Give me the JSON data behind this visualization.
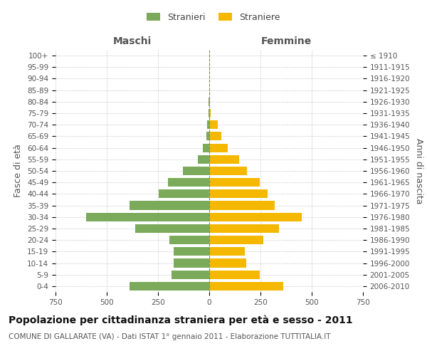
{
  "age_groups": [
    "100+",
    "95-99",
    "90-94",
    "85-89",
    "80-84",
    "75-79",
    "70-74",
    "65-69",
    "60-64",
    "55-59",
    "50-54",
    "45-49",
    "40-44",
    "35-39",
    "30-34",
    "25-29",
    "20-24",
    "15-19",
    "10-14",
    "5-9",
    "0-4"
  ],
  "birth_years": [
    "≤ 1910",
    "1911-1915",
    "1916-1920",
    "1921-1925",
    "1926-1930",
    "1931-1935",
    "1936-1940",
    "1941-1945",
    "1946-1950",
    "1951-1955",
    "1956-1960",
    "1961-1965",
    "1966-1970",
    "1971-1975",
    "1976-1980",
    "1981-1985",
    "1986-1990",
    "1991-1995",
    "1996-2000",
    "2001-2005",
    "2006-2010"
  ],
  "maschi": [
    0,
    0,
    0,
    0,
    3,
    5,
    10,
    15,
    30,
    55,
    130,
    200,
    245,
    390,
    600,
    360,
    195,
    175,
    175,
    185,
    390
  ],
  "femmine": [
    0,
    0,
    0,
    0,
    5,
    8,
    40,
    60,
    90,
    145,
    185,
    245,
    285,
    320,
    450,
    340,
    265,
    175,
    180,
    245,
    360
  ],
  "maschi_color": "#7aaa5a",
  "femmine_color": "#f5b800",
  "dashed_line_color": "#888855",
  "grid_color": "#cccccc",
  "background_color": "#ffffff",
  "title": "Popolazione per cittadinanza straniera per età e sesso - 2011",
  "subtitle": "COMUNE DI GALLARATE (VA) - Dati ISTAT 1° gennaio 2011 - Elaborazione TUTTITALIA.IT",
  "ylabel_left": "Fasce di età",
  "ylabel_right": "Anni di nascita",
  "xlabel_left": "Maschi",
  "xlabel_right": "Femmine",
  "legend_stranieri": "Stranieri",
  "legend_straniere": "Straniere",
  "xlim": 750,
  "title_fontsize": 10,
  "subtitle_fontsize": 7.5,
  "axis_label_fontsize": 9,
  "tick_fontsize": 7.5,
  "header_fontsize": 10
}
